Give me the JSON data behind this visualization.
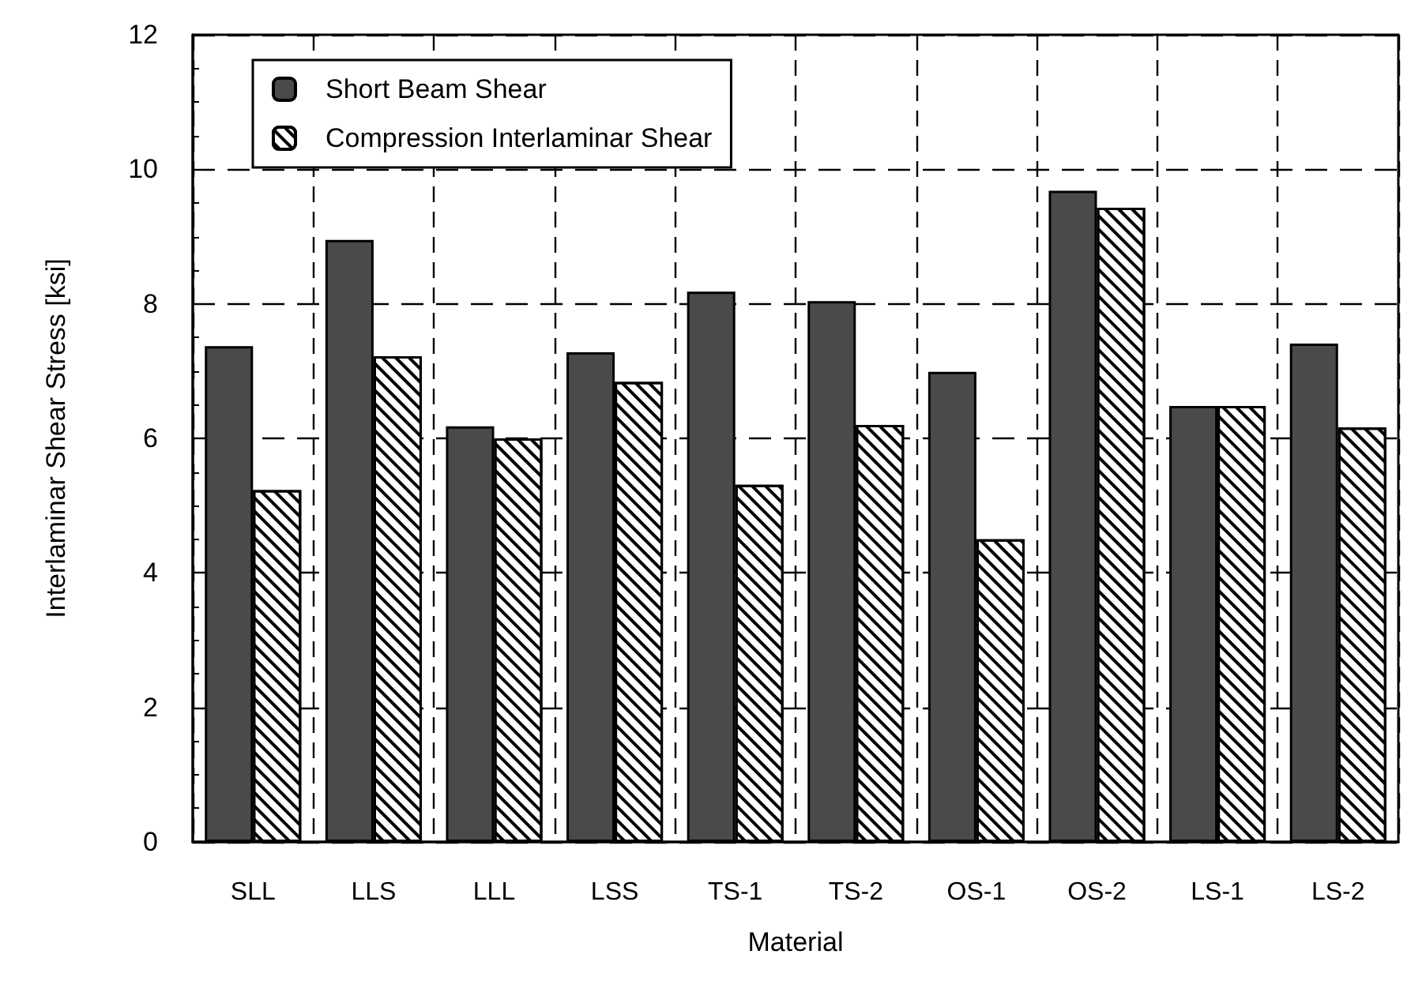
{
  "chart_data": {
    "type": "bar",
    "xlabel": "Material",
    "ylabel": "Interlaminar Shear Stress [ksi]",
    "categories": [
      "SLL",
      "LLS",
      "LLL",
      "LSS",
      "TS-1",
      "TS-2",
      "OS-1",
      "OS-2",
      "LS-1",
      "LS-2"
    ],
    "series": [
      {
        "name": "Short Beam Shear",
        "color": "#4a4a4a",
        "values": [
          7.37,
          8.95,
          6.18,
          7.28,
          8.18,
          8.04,
          6.99,
          9.68,
          6.48,
          7.41
        ]
      },
      {
        "name": "Compression Interlaminar Shear",
        "color": "#ffffff",
        "values": [
          5.23,
          7.22,
          6.0,
          6.84,
          5.31,
          6.2,
          4.5,
          9.43,
          6.48,
          6.16
        ]
      }
    ],
    "ylim": [
      0,
      12
    ],
    "yticks": [
      0,
      2,
      4,
      6,
      8,
      10,
      12
    ],
    "grid": true,
    "legend": "top left"
  }
}
